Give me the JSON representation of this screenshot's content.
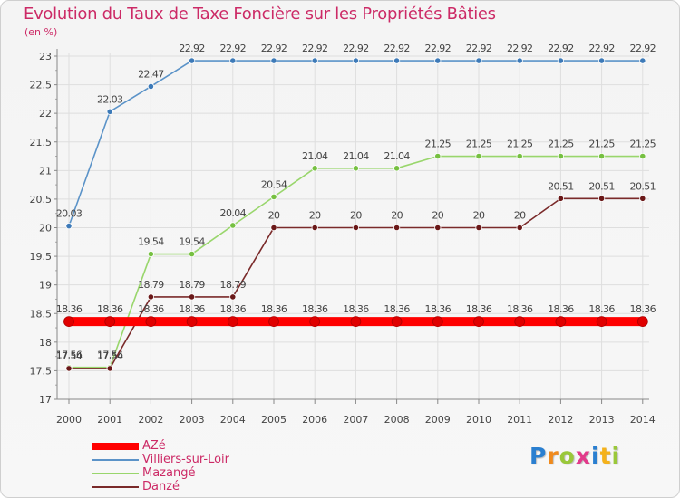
{
  "chart_data": {
    "type": "line",
    "title": "Evolution du Taux de Taxe Foncière sur les Propriétés Bâties",
    "unit_label": "(en %)",
    "xlabel": "",
    "ylabel": "",
    "ylim": [
      17,
      23
    ],
    "y_ticks": [
      "17",
      "17.5",
      "18",
      "18.5",
      "19",
      "19.5",
      "20",
      "20.5",
      "21",
      "21.5",
      "22",
      "22.5",
      "23"
    ],
    "categories": [
      "2000",
      "2001",
      "2002",
      "2003",
      "2004",
      "2005",
      "2006",
      "2007",
      "2008",
      "2009",
      "2010",
      "2011",
      "2012",
      "2013",
      "2014"
    ],
    "series": [
      {
        "name": "Villiers-sur-Loir",
        "color": "#5b93c8",
        "dot": "#3d7ab8",
        "values": [
          20.03,
          22.03,
          22.47,
          22.92,
          22.92,
          22.92,
          22.92,
          22.92,
          22.92,
          22.92,
          22.92,
          22.92,
          22.92,
          22.92,
          22.92
        ],
        "labels": [
          "20.03",
          "22.03",
          "22.47",
          "22.92",
          "22.92",
          "22.92",
          "22.92",
          "22.92",
          "22.92",
          "22.92",
          "22.92",
          "22.92",
          "22.92",
          "22.92",
          "22.92"
        ]
      },
      {
        "name": "Mazangé",
        "color": "#99d66c",
        "dot": "#76c041",
        "values": [
          17.56,
          17.56,
          19.54,
          19.54,
          20.04,
          20.54,
          21.04,
          21.04,
          21.04,
          21.25,
          21.25,
          21.25,
          21.25,
          21.25,
          21.25
        ],
        "labels": [
          "17.56",
          "17.56",
          "19.54",
          "19.54",
          "20.04",
          "20.54",
          "21.04",
          "21.04",
          "21.04",
          "21.25",
          "21.25",
          "21.25",
          "21.25",
          "21.25",
          "21.25"
        ]
      },
      {
        "name": "Danzé",
        "color": "#7a2a2a",
        "dot": "#6a1818",
        "values": [
          17.54,
          17.54,
          18.79,
          18.79,
          18.79,
          20,
          20,
          20,
          20,
          20,
          20,
          20,
          20.51,
          20.51,
          20.51
        ],
        "labels": [
          "17.54",
          "17.54",
          "18.79",
          "18.79",
          "18.79",
          "20",
          "20",
          "20",
          "20",
          "20",
          "20",
          "20",
          "20.51",
          "20.51",
          "20.51"
        ]
      },
      {
        "name": "AZé",
        "color": "#ff0000",
        "dot": "#e00000",
        "values": [
          18.36,
          18.36,
          18.36,
          18.36,
          18.36,
          18.36,
          18.36,
          18.36,
          18.36,
          18.36,
          18.36,
          18.36,
          18.36,
          18.36,
          18.36
        ],
        "labels": [
          "18.36",
          "18.36",
          "18.36",
          "18.36",
          "18.36",
          "18.36",
          "18.36",
          "18.36",
          "18.36",
          "18.36",
          "18.36",
          "18.36",
          "18.36",
          "18.36",
          "18.36"
        ]
      }
    ],
    "legend": [
      {
        "name": "AZé",
        "color": "#ff0000"
      },
      {
        "name": "Villiers-sur-Loir",
        "color": "#5b93c8"
      },
      {
        "name": "Mazangé",
        "color": "#99d66c"
      },
      {
        "name": "Danzé",
        "color": "#7a2a2a"
      }
    ],
    "legend_position": "bottom-left"
  },
  "logo": {
    "letters": [
      "P",
      "r",
      "o",
      "x",
      "i",
      "t",
      "i"
    ],
    "colors": [
      "#2a7fd0",
      "#f08a1c",
      "#9ac83a",
      "#e23a8a",
      "#2a7fd0",
      "#f5b21a",
      "#9ac83a"
    ]
  }
}
